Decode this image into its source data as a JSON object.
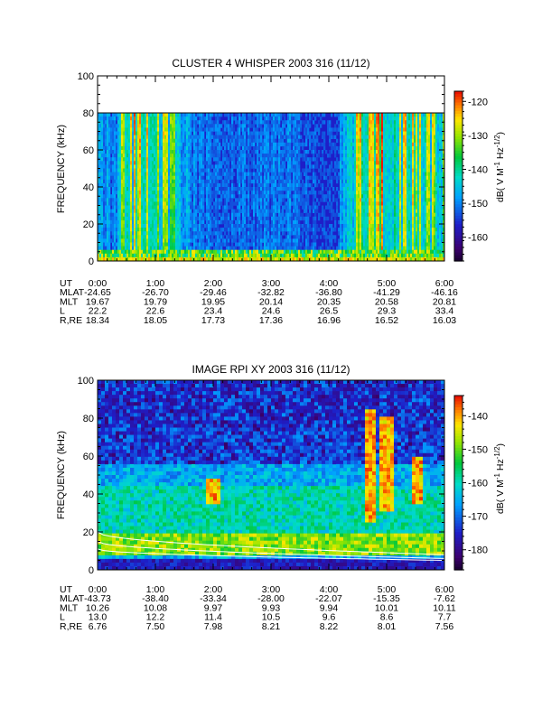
{
  "chart_data": [
    {
      "type": "heatmap",
      "title": "CLUSTER 4 WHISPER 2003 316 (11/12)",
      "ylabel": "FREQUENCY (kHz)",
      "ylim": [
        0,
        100
      ],
      "yticks": [
        "0",
        "20",
        "40",
        "60",
        "80",
        "100"
      ],
      "data_frequency_max": 80,
      "xlim_hours": [
        0,
        6
      ],
      "colorbar": {
        "label": "dB( V M",
        "label_sup1": "-1",
        "label_mid": " Hz",
        "label_sup2": "-1/2",
        "label_end": ")",
        "range": [
          -167,
          -117
        ],
        "ticks": [
          "-120",
          "-130",
          "-140",
          "-150",
          "-160"
        ]
      },
      "activity_profile": [
        {
          "t": 0.0,
          "v": 0.4
        },
        {
          "t": 0.3,
          "v": 0.3
        },
        {
          "t": 0.5,
          "v": 0.8
        },
        {
          "t": 0.8,
          "v": 0.95
        },
        {
          "t": 1.1,
          "v": 0.75
        },
        {
          "t": 1.35,
          "v": 0.6
        },
        {
          "t": 1.7,
          "v": 0.25
        },
        {
          "t": 2.2,
          "v": 0.2
        },
        {
          "t": 2.7,
          "v": 0.25
        },
        {
          "t": 3.2,
          "v": 0.3
        },
        {
          "t": 3.7,
          "v": 0.15
        },
        {
          "t": 4.15,
          "v": 0.1
        },
        {
          "t": 4.3,
          "v": 0.75
        },
        {
          "t": 4.6,
          "v": 0.9
        },
        {
          "t": 4.9,
          "v": 1.0
        },
        {
          "t": 5.3,
          "v": 0.85
        },
        {
          "t": 5.7,
          "v": 0.8
        },
        {
          "t": 6.0,
          "v": 0.7
        }
      ],
      "ephemeris": {
        "labels": [
          "UT",
          "MLAT",
          "MLT",
          "L",
          "R,RE"
        ],
        "UT": [
          "0:00",
          "1:00",
          "2:00",
          "3:00",
          "4:00",
          "5:00",
          "6:00"
        ],
        "MLAT": [
          "-24.65",
          "-26.70",
          "-29.46",
          "-32.82",
          "-36.80",
          "-41.29",
          "-46.16"
        ],
        "MLT": [
          "19.67",
          "19.79",
          "19.95",
          "20.14",
          "20.35",
          "20.58",
          "20.81"
        ],
        "L": [
          "22.2",
          "22.6",
          "23.4",
          "24.6",
          "26.5",
          "29.3",
          "33.4"
        ],
        "R,RE": [
          "18.34",
          "18.05",
          "17.73",
          "17.36",
          "16.96",
          "16.52",
          "16.03"
        ]
      }
    },
    {
      "type": "heatmap",
      "title": "IMAGE RPI XY 2003 316 (11/12)",
      "ylabel": "FREQUENCY (kHz)",
      "ylim": [
        0,
        100
      ],
      "yticks": [
        "0",
        "20",
        "40",
        "60",
        "80",
        "100"
      ],
      "xlim_hours": [
        0,
        6
      ],
      "colorbar": {
        "label": "dB( V M",
        "label_sup1": "-1",
        "label_mid": " Hz",
        "label_sup2": "-1/2",
        "label_end": ")",
        "range": [
          -186,
          -134
        ],
        "ticks": [
          "-140",
          "-150",
          "-160",
          "-170",
          "-180"
        ]
      },
      "bright_bursts": [
        {
          "t": 4.7,
          "f_min": 25,
          "f_max": 85
        },
        {
          "t": 5.0,
          "f_min": 30,
          "f_max": 80
        },
        {
          "t": 5.55,
          "f_min": 35,
          "f_max": 60
        },
        {
          "t": 2.0,
          "f_min": 35,
          "f_max": 48
        }
      ],
      "ephemeris": {
        "labels": [
          "UT",
          "MLAT",
          "MLT",
          "L",
          "R,RE"
        ],
        "UT": [
          "0:00",
          "1:00",
          "2:00",
          "3:00",
          "4:00",
          "5:00",
          "6:00"
        ],
        "MLAT": [
          "-43.73",
          "-38.40",
          "-33.34",
          "-28.00",
          "-22.07",
          "-15.35",
          "-7.62"
        ],
        "MLT": [
          "10.26",
          "10.08",
          "9.97",
          "9.93",
          "9.94",
          "10.01",
          "10.11"
        ],
        "L": [
          "13.0",
          "12.2",
          "11.4",
          "10.5",
          "9.6",
          "8.6",
          "7.7"
        ],
        "R,RE": [
          "6.76",
          "7.50",
          "7.98",
          "8.21",
          "8.22",
          "8.01",
          "7.56"
        ]
      }
    }
  ]
}
